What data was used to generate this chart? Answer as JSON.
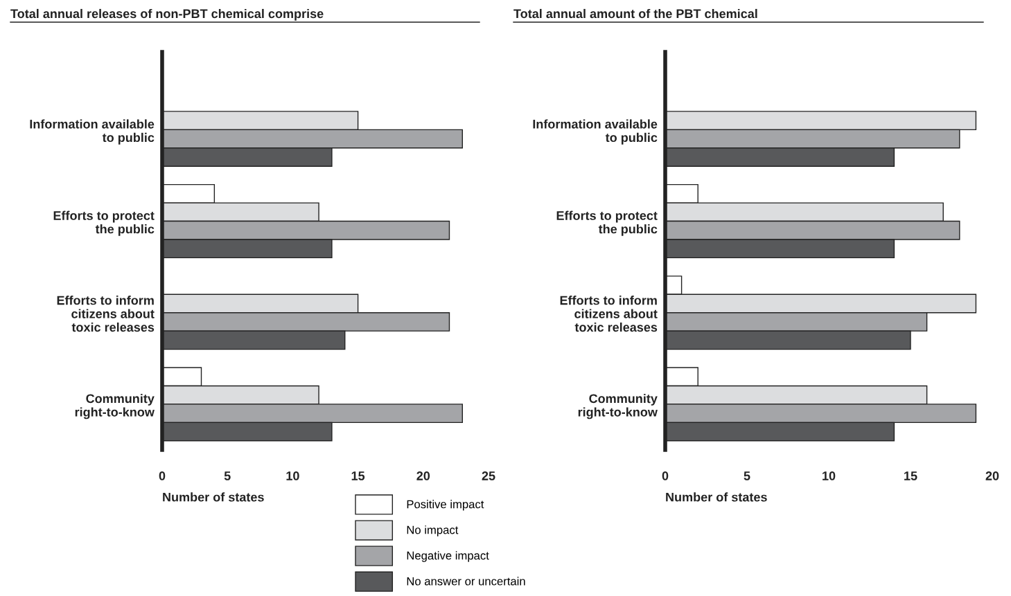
{
  "chart_data": [
    {
      "type": "bar",
      "orientation": "horizontal",
      "title": "Total annual releases of non-PBT chemical comprise",
      "xlabel": "Number of states",
      "categories": [
        "Information available\nto public",
        "Efforts to protect\nthe public",
        "Efforts to inform\ncitizens about\ntoxic releases",
        "Community\nright-to-know"
      ],
      "series": [
        {
          "name": "Positive impact",
          "color": "#ffffff",
          "values": [
            null,
            4,
            null,
            3
          ]
        },
        {
          "name": "No impact",
          "color": "#dcdddf",
          "values": [
            15,
            12,
            15,
            12
          ]
        },
        {
          "name": "Negative impact",
          "color": "#a4a5a8",
          "values": [
            23,
            22,
            22,
            23
          ]
        },
        {
          "name": "No answer or uncertain",
          "color": "#58595b",
          "values": [
            13,
            13,
            14,
            13
          ]
        }
      ],
      "xlim": [
        0,
        25
      ],
      "xticks": [
        0,
        5,
        10,
        15,
        20,
        25
      ],
      "grid": false,
      "legend": "bottom"
    },
    {
      "type": "bar",
      "orientation": "horizontal",
      "title": "Total annual amount of the PBT chemical",
      "xlabel": "Number of states",
      "categories": [
        "Information available\nto public",
        "Efforts to protect\nthe public",
        "Efforts to inform\ncitizens about\ntoxic releases",
        "Community\nright-to-know"
      ],
      "series": [
        {
          "color": "#ffffff",
          "values": [
            null,
            2,
            1,
            2
          ]
        },
        {
          "color": "#dcdddf",
          "values": [
            19,
            17,
            19,
            16
          ]
        },
        {
          "color": "#a4a5a8",
          "values": [
            18,
            18,
            16,
            19
          ]
        },
        {
          "color": "#58595b",
          "values": [
            14,
            14,
            15,
            14
          ]
        }
      ],
      "xlim": [
        0,
        20
      ],
      "xticks": [
        0,
        5,
        10,
        15,
        20
      ],
      "grid": false
    }
  ]
}
